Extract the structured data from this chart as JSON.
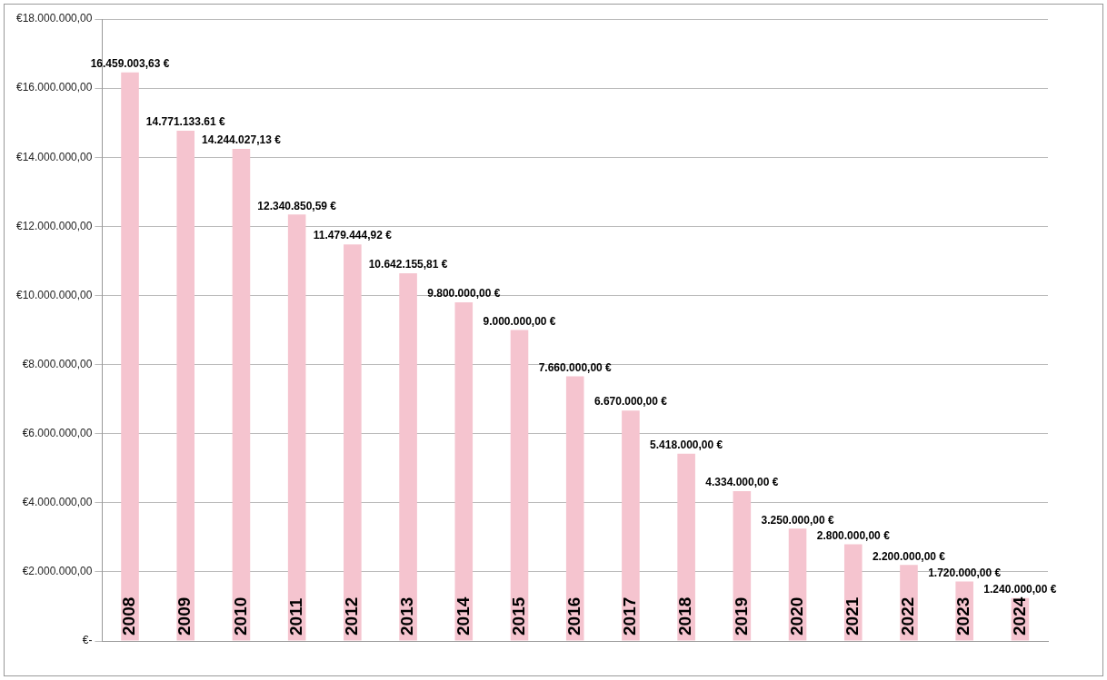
{
  "chart_data": {
    "type": "bar",
    "categories": [
      "2008",
      "2009",
      "2010",
      "2011",
      "2012",
      "2013",
      "2014",
      "2015",
      "2016",
      "2017",
      "2018",
      "2019",
      "2020",
      "2021",
      "2022",
      "2023",
      "2024"
    ],
    "values": [
      16459003.63,
      14771133.61,
      14244027.13,
      12340850.59,
      11479444.92,
      10642155.81,
      9800000,
      9000000,
      7660000,
      6670000,
      5418000,
      4334000,
      3250000,
      2800000,
      2200000,
      1720000,
      1240000
    ],
    "value_labels": [
      "16.459.003,63 €",
      "14.771.133.61 €",
      "14.244.027,13 €",
      "12.340.850,59 €",
      "11.479.444,92 €",
      "10.642.155,81 €",
      "9.800.000,00 €",
      "9.000.000,00 €",
      "7.660.000,00 €",
      "6.670.000,00 €",
      "5.418.000,00 €",
      "4.334.000,00 €",
      "3.250.000,00 €",
      "2.800.000,00 €",
      "2.200.000,00 €",
      "1.720.000,00 €",
      "1.240.000,00 €"
    ],
    "color": "#f5c4cf",
    "ylim": [
      0,
      18000000
    ],
    "yticks": [
      {
        "value": 0,
        "label": "€-"
      },
      {
        "value": 2000000,
        "label": "€2.000.000,00"
      },
      {
        "value": 4000000,
        "label": "€4.000.000,00"
      },
      {
        "value": 6000000,
        "label": "€6.000.000,00"
      },
      {
        "value": 8000000,
        "label": "€8.000.000,00"
      },
      {
        "value": 10000000,
        "label": "€10.000.000,00"
      },
      {
        "value": 12000000,
        "label": "€12.000.000,00"
      },
      {
        "value": 14000000,
        "label": "€14.000.000,00"
      },
      {
        "value": 16000000,
        "label": "€16.000.000,00"
      },
      {
        "value": 18000000,
        "label": "€18.000.000,00"
      }
    ],
    "grid": "y",
    "legend": false
  }
}
